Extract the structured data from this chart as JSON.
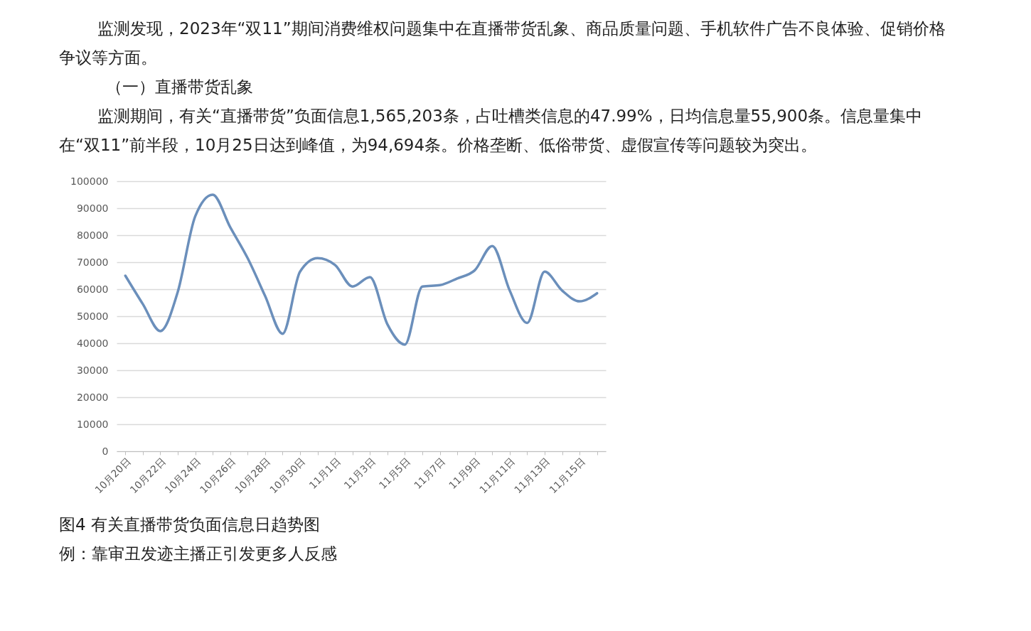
{
  "chart_data": {
    "type": "line",
    "title": "图4 有关直播带货负面信息日趋势图",
    "annotations": [
      "监测发现，2023年“双11”期间消费维权问题集中在直播带货乱象、商品质量问题、手机软件广告不良体验、促销价格争议等方面。",
      "（一）直播带货乱象",
      "监测期间，有关“直播带货”负面信息1,565,203条，占吐槽类信息的47.99%，日均信息量55,900条。信息量集中在“双11”前半段，10月25日达到峰值，为94,694条。价格垄断、低俗带货、虚假宣传等问题较为突出。",
      "例：靠审丑发迹主播正引发更多人反感"
    ],
    "categories": [
      "10月20日",
      null,
      "10月22日",
      null,
      "10月24日",
      null,
      "10月26日",
      null,
      "10月28日",
      null,
      "10月30日",
      null,
      "11月1日",
      null,
      "11月3日",
      null,
      "11月5日",
      null,
      "11月7日",
      null,
      "11月9日",
      null,
      "11月11日",
      null,
      "11月13日",
      null,
      "11月15日",
      null
    ],
    "series": [
      {
        "color": "#6b8fbb",
        "values": [
          65000,
          54500,
          44500,
          59000,
          87000,
          95000,
          83000,
          71500,
          57500,
          43500,
          66500,
          71500,
          69000,
          61000,
          64500,
          47000,
          39500,
          61000,
          61500,
          64000,
          67000,
          76000,
          59500,
          47500,
          66500,
          59500,
          55500,
          58500
        ]
      }
    ],
    "ylim": [
      0,
      100000
    ],
    "yticks": [
      0,
      10000,
      20000,
      30000,
      40000,
      50000,
      60000,
      70000,
      80000,
      90000,
      100000
    ],
    "grid": "y",
    "marker": "none",
    "line_style": "solid"
  }
}
